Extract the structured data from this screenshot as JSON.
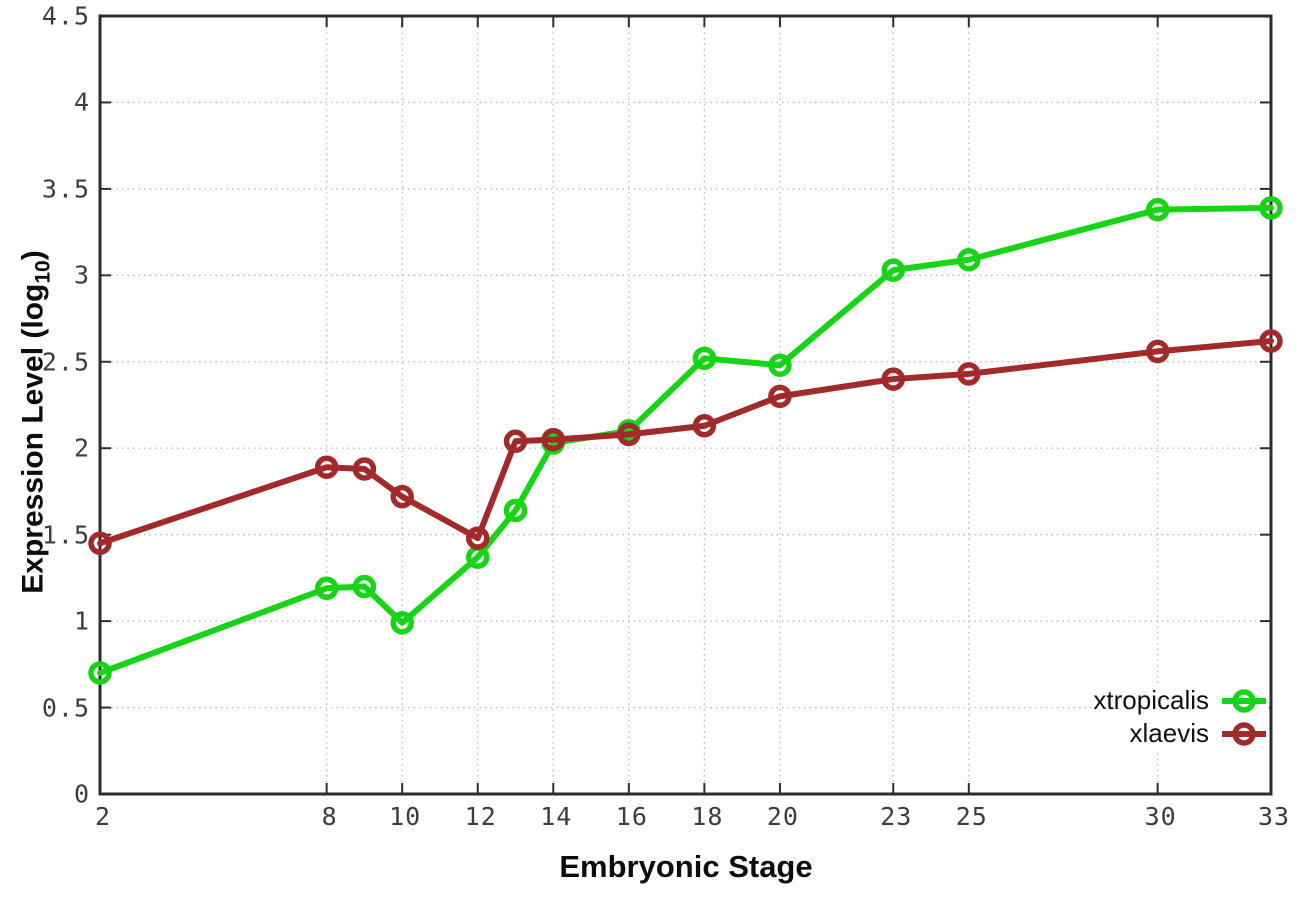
{
  "chart_data": {
    "type": "line",
    "title": "",
    "xlabel": "Embryonic Stage",
    "ylabel": "Expression Level (log10)",
    "ylabel_parts": {
      "prefix": "Expression Level (log",
      "subscript": "10",
      "suffix": ")"
    },
    "x": [
      2,
      8,
      9,
      10,
      12,
      13,
      14,
      16,
      18,
      20,
      23,
      25,
      30,
      33
    ],
    "xticks": [
      2,
      8,
      10,
      12,
      14,
      16,
      18,
      20,
      23,
      25,
      30,
      33
    ],
    "yticks": [
      0,
      0.5,
      1,
      1.5,
      2,
      2.5,
      3,
      3.5,
      4,
      4.5
    ],
    "xlim": [
      2,
      33
    ],
    "ylim": [
      0,
      4.5
    ],
    "grid": true,
    "legend_position": "inside-bottom-right",
    "series": [
      {
        "name": "xtropicalis",
        "color": "#17d417",
        "marker": "open-circle",
        "values": [
          0.7,
          1.19,
          1.2,
          0.99,
          1.37,
          1.64,
          2.03,
          2.1,
          2.52,
          2.48,
          3.03,
          3.09,
          3.38,
          3.39
        ]
      },
      {
        "name": "xlaevis",
        "color": "#a32a2a",
        "marker": "open-circle",
        "values": [
          1.45,
          1.89,
          1.88,
          1.72,
          1.48,
          2.04,
          2.05,
          2.08,
          2.13,
          2.3,
          2.4,
          2.43,
          2.56,
          2.62
        ]
      }
    ],
    "style": {
      "axis_color": "#2d2d2d",
      "grid_color": "#bcbcbc",
      "tick_label_color": "#3d3d3d",
      "background": "#ffffff",
      "line_width": 6,
      "marker_radius": 9
    }
  }
}
